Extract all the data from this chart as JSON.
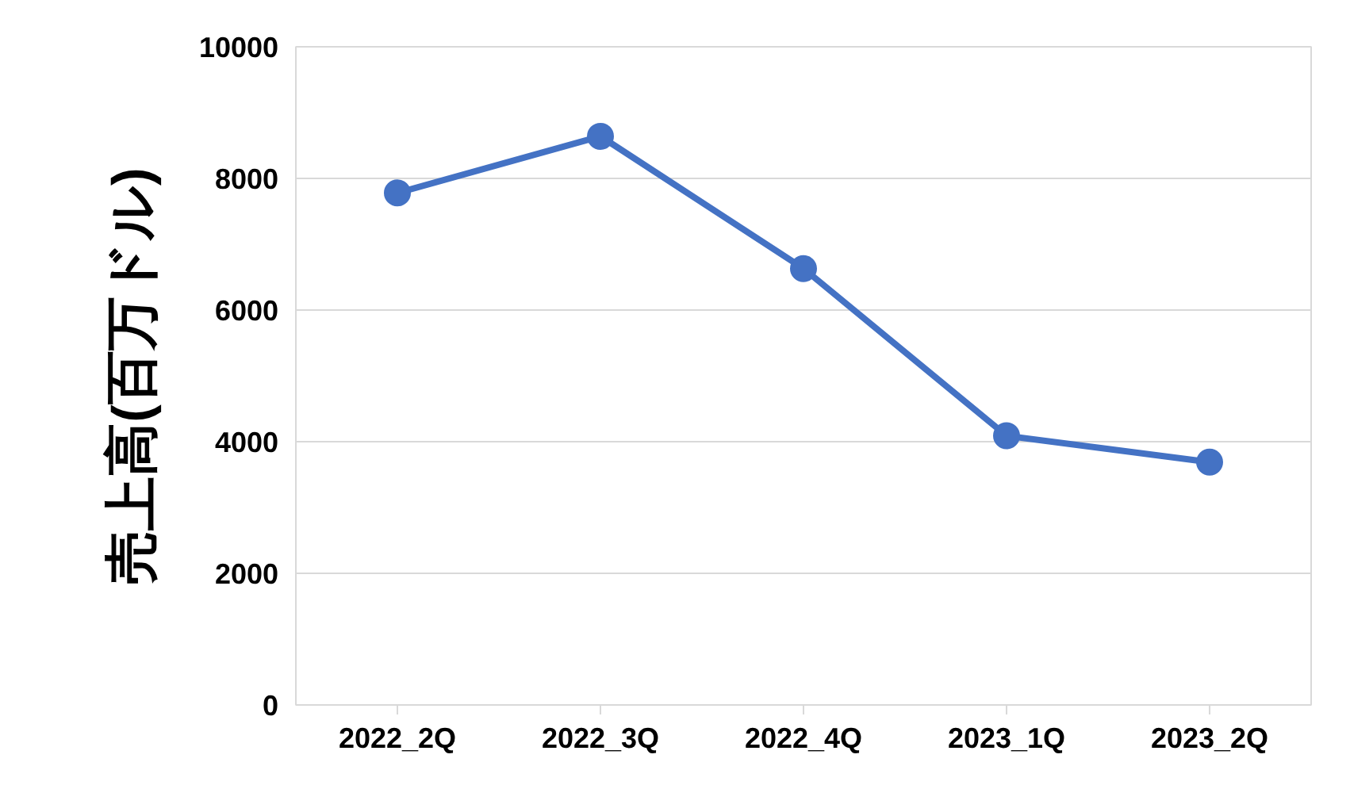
{
  "chart_data": {
    "type": "line",
    "ylabel": "売上高(百万ドル)",
    "categories": [
      "2022_2Q",
      "2022_3Q",
      "2022_4Q",
      "2023_1Q",
      "2023_2Q"
    ],
    "series": [
      {
        "color": "#4472c4",
        "values": [
          7780,
          8640,
          6630,
          4090,
          3690
        ]
      }
    ],
    "ylim": [
      0,
      10000
    ],
    "yticks": [
      0,
      2000,
      4000,
      6000,
      8000,
      10000
    ],
    "grid": "y",
    "marker": "circle",
    "line_style": "solid"
  }
}
